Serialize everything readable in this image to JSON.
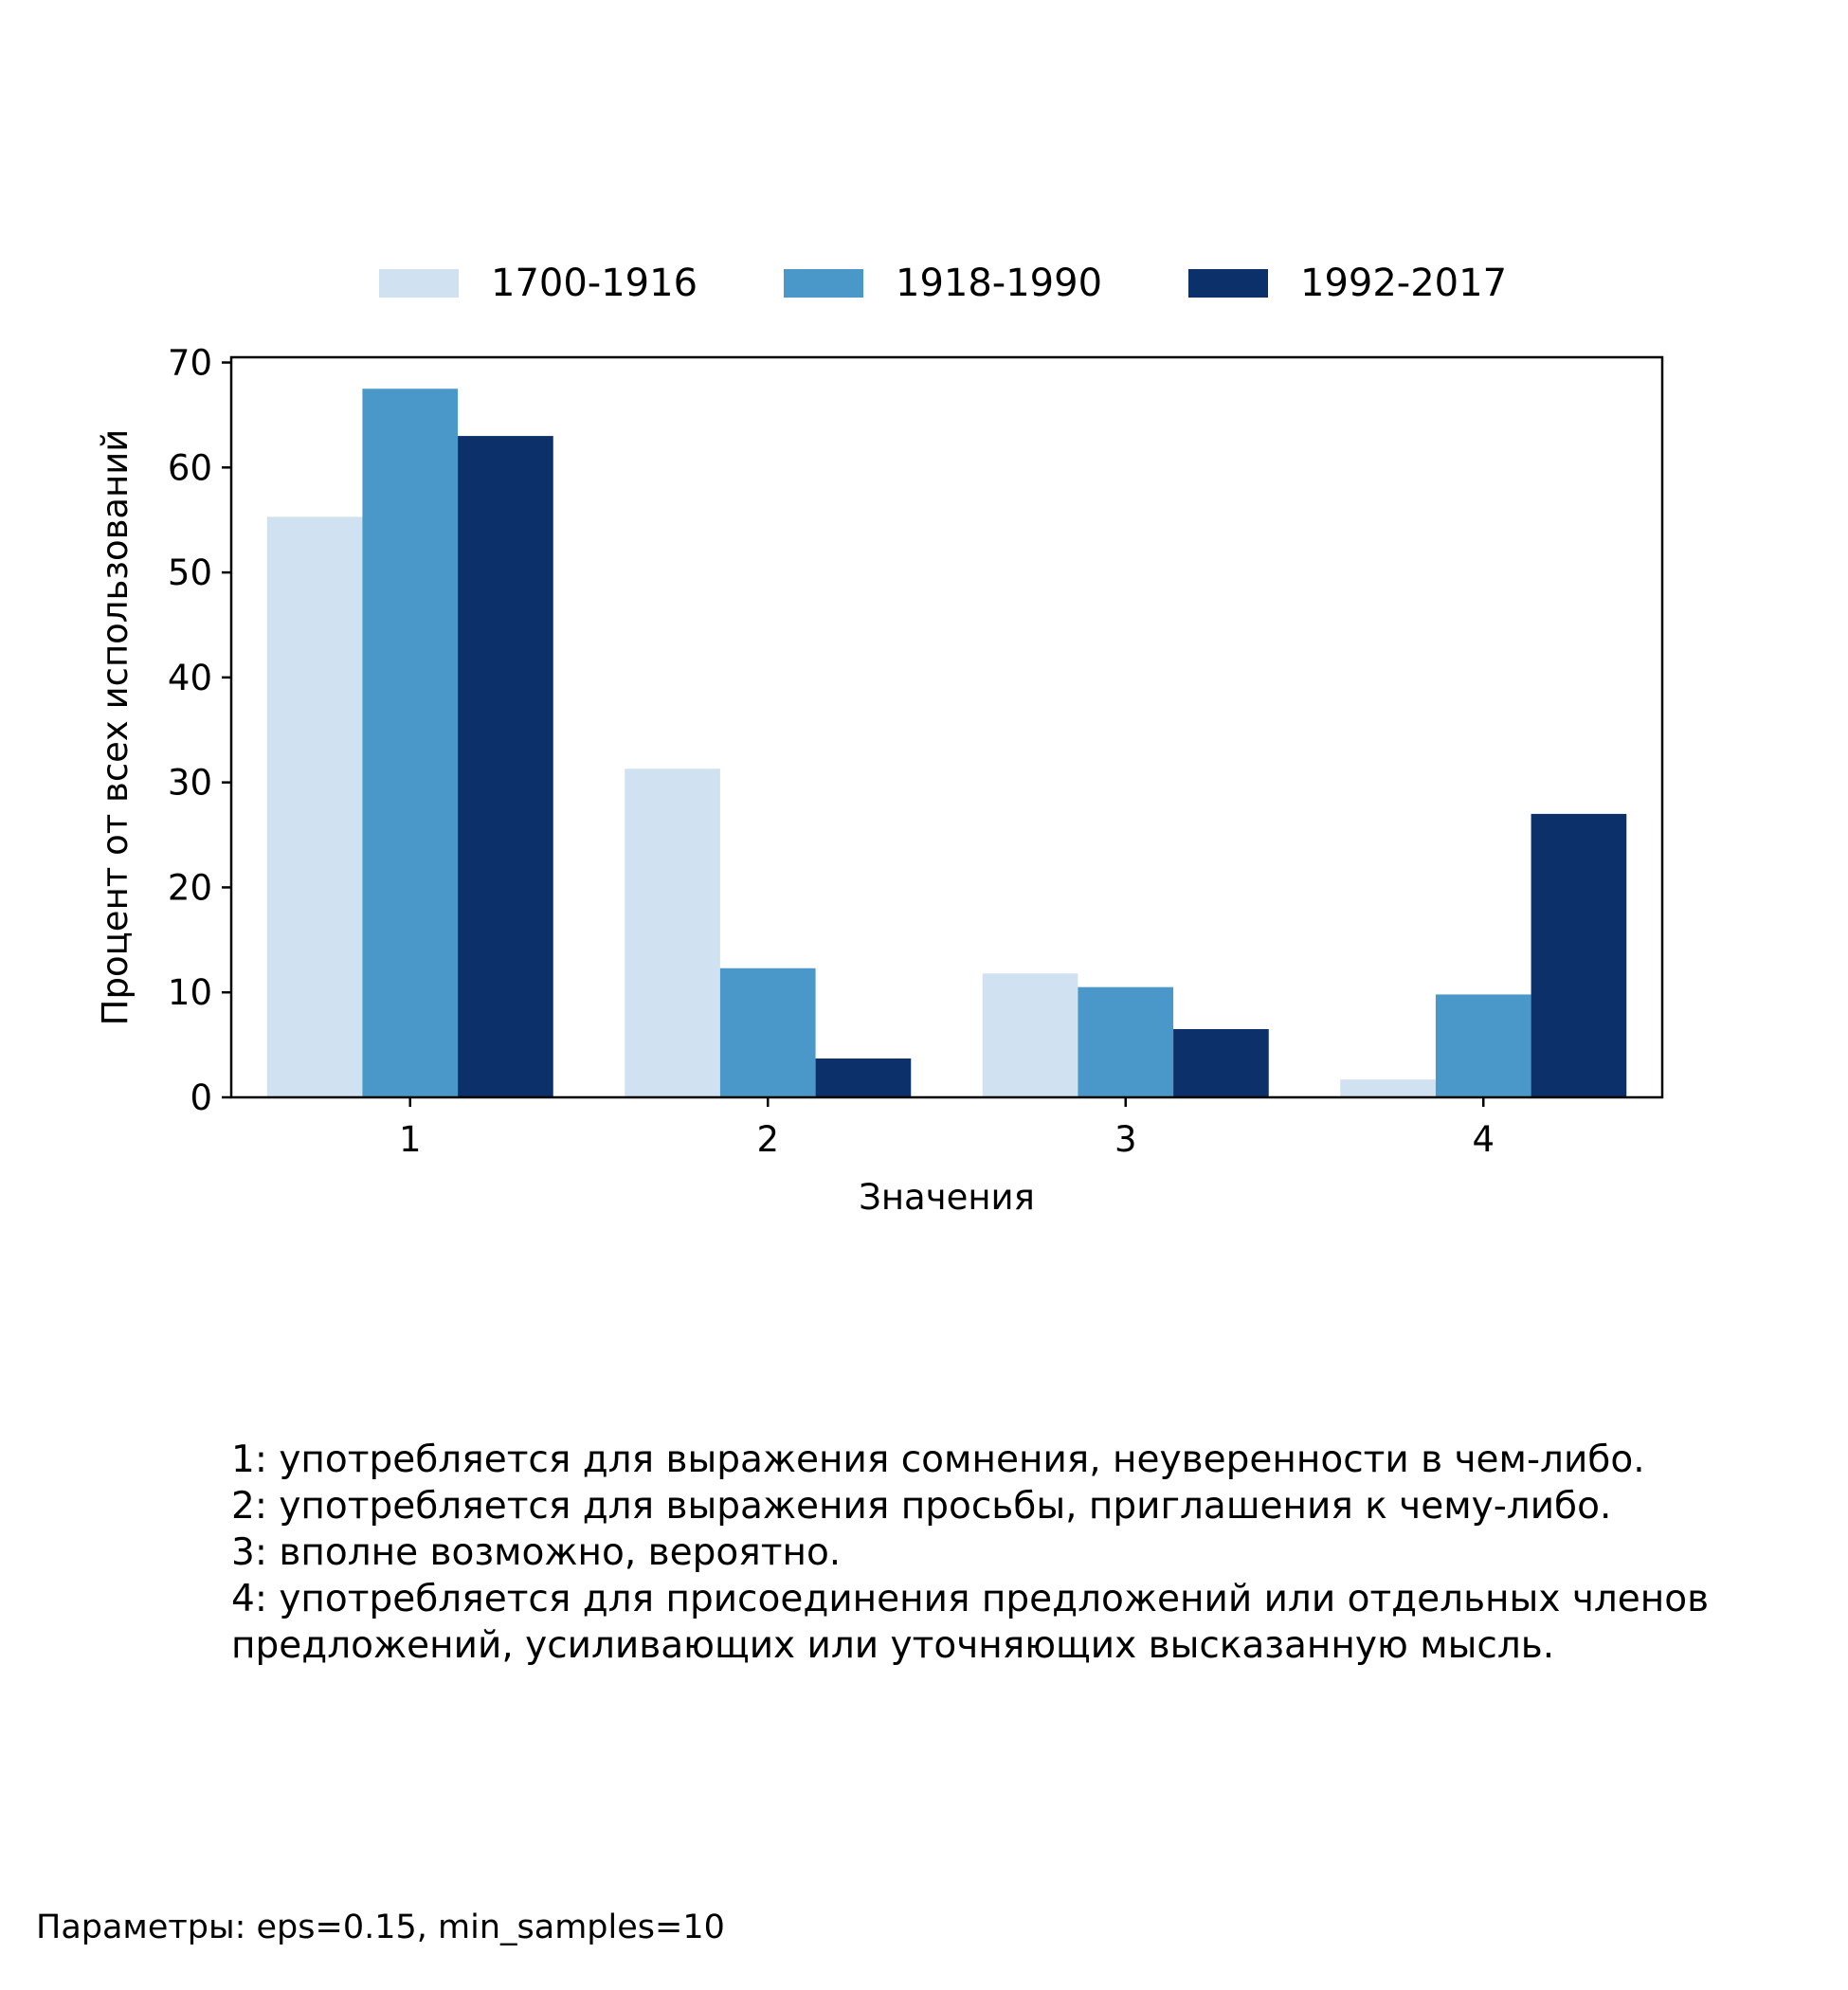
{
  "chart_data": {
    "type": "bar",
    "categories": [
      "1",
      "2",
      "3",
      "4"
    ],
    "series": [
      {
        "name": "1700-1916",
        "values": [
          55.3,
          31.3,
          11.8,
          1.7
        ],
        "color": "#d0e1f1"
      },
      {
        "name": "1918-1990",
        "values": [
          67.5,
          12.3,
          10.5,
          9.8
        ],
        "color": "#4a98c9"
      },
      {
        "name": "1992-2017",
        "values": [
          63.0,
          3.7,
          6.5,
          27.0
        ],
        "color": "#0b306a"
      }
    ],
    "xlabel": "Значения",
    "ylabel": "Процент от всех использований",
    "ylim": [
      0,
      70.5
    ],
    "yticks": [
      0,
      10,
      20,
      30,
      40,
      50,
      60,
      70
    ],
    "grid": false,
    "legend_position": "top-center"
  },
  "notes": [
    "1: употребляется для выражения сомнения, неуверенности в чем-либо.",
    "2: употребляется для выражения просьбы, приглашения к чему-либо.",
    "3: вполне возможно, вероятно.",
    "4: употребляется для присоединения предложений или отдельных членов предложений, усиливающих или уточняющих высказанную мысль."
  ],
  "params": "Параметры: eps=0.15, min_samples=10"
}
